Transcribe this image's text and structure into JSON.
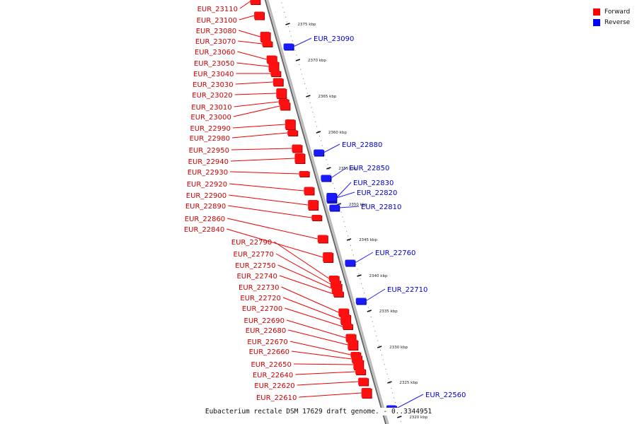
{
  "legend": {
    "items": [
      {
        "label": "Forward",
        "color": "#ff0000"
      },
      {
        "label": "Reverse",
        "color": "#0000ff"
      }
    ]
  },
  "caption": "Eubacterium rectale DSM 17629 draft genome. - 0..3344951",
  "map": {
    "scale_ticks": [
      {
        "label": "2375 kbp"
      },
      {
        "label": "2370 kbp"
      },
      {
        "label": "2365 kbp"
      },
      {
        "label": "2360 kbp"
      },
      {
        "label": "2355 kbp"
      },
      {
        "label": "2350 kbp"
      },
      {
        "label": "2345 kbp"
      },
      {
        "label": "2340 kbp"
      },
      {
        "label": "2335 kbp"
      },
      {
        "label": "2330 kbp"
      },
      {
        "label": "2325 kbp"
      },
      {
        "label": "2320 kbp"
      }
    ],
    "forward_genes": [
      "EUR_23110",
      "EUR_23100",
      "EUR_23080",
      "EUR_23070",
      "EUR_23060",
      "EUR_23050",
      "EUR_23040",
      "EUR_23030",
      "EUR_23020",
      "EUR_23010",
      "EUR_23000",
      "EUR_22990",
      "EUR_22980",
      "EUR_22950",
      "EUR_22940",
      "EUR_22930",
      "EUR_22920",
      "EUR_22900",
      "EUR_22890",
      "EUR_22860",
      "EUR_22840",
      "EUR_22790",
      "EUR_22770",
      "EUR_22750",
      "EUR_22740",
      "EUR_22730",
      "EUR_22720",
      "EUR_22700",
      "EUR_22690",
      "EUR_22680",
      "EUR_22670",
      "EUR_22660",
      "EUR_22650",
      "EUR_22640",
      "EUR_22620",
      "EUR_22610"
    ],
    "reverse_genes": [
      "EUR_23090",
      "EUR_22880",
      "EUR_22850",
      "EUR_22830",
      "EUR_22820",
      "EUR_22810",
      "EUR_22760",
      "EUR_22710",
      "EUR_22560"
    ]
  }
}
